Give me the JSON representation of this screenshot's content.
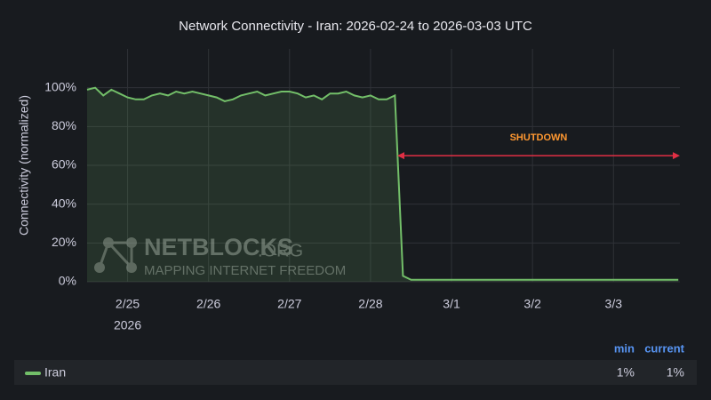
{
  "chart_data": {
    "type": "line",
    "title": "Network Connectivity - Iran: 2026-02-24 to 2026-03-03 UTC",
    "y_label": "Connectivity (normalized)",
    "xlim": [
      0.5,
      7.82
    ],
    "xticks": [
      {
        "value": 1,
        "label": "2/25",
        "sublabel": "2026"
      },
      {
        "value": 2,
        "label": "2/26"
      },
      {
        "value": 3,
        "label": "2/27"
      },
      {
        "value": 4,
        "label": "2/28"
      },
      {
        "value": 5,
        "label": "3/1"
      },
      {
        "value": 6,
        "label": "3/2"
      },
      {
        "value": 7,
        "label": "3/3"
      }
    ],
    "ylim": [
      0,
      120
    ],
    "yticks": [
      {
        "value": 0,
        "label": "0%"
      },
      {
        "value": 20,
        "label": "20%"
      },
      {
        "value": 40,
        "label": "40%"
      },
      {
        "value": 60,
        "label": "60%"
      },
      {
        "value": 80,
        "label": "80%"
      },
      {
        "value": 100,
        "label": "100%"
      }
    ],
    "grid": true,
    "x": [
      0.5,
      0.6,
      0.7,
      0.8,
      0.9,
      1.0,
      1.1,
      1.2,
      1.3,
      1.4,
      1.5,
      1.6,
      1.7,
      1.8,
      1.9,
      2.0,
      2.1,
      2.2,
      2.3,
      2.4,
      2.5,
      2.6,
      2.7,
      2.8,
      2.9,
      3.0,
      3.1,
      3.2,
      3.3,
      3.4,
      3.5,
      3.6,
      3.7,
      3.8,
      3.9,
      4.0,
      4.1,
      4.2,
      4.3,
      4.4,
      4.5,
      4.6,
      4.7,
      4.8,
      4.9,
      5.0,
      5.1,
      5.2,
      5.3,
      5.4,
      5.5,
      5.6,
      5.7,
      5.8,
      5.9,
      6.0,
      6.1,
      6.2,
      6.3,
      6.4,
      6.5,
      6.6,
      6.7,
      6.8,
      6.9,
      7.0,
      7.1,
      7.2,
      7.3,
      7.4,
      7.5,
      7.6,
      7.7,
      7.8
    ],
    "series": [
      {
        "name": "Iran",
        "color": "#73bf69",
        "values": [
          99,
          100,
          96,
          99,
          97,
          95,
          94,
          94,
          96,
          97,
          96,
          98,
          97,
          98,
          97,
          96,
          95,
          93,
          94,
          96,
          97,
          98,
          96,
          97,
          98,
          98,
          97,
          95,
          96,
          94,
          97,
          97,
          98,
          96,
          95,
          96,
          94,
          94,
          96,
          3,
          1,
          1,
          1,
          1,
          1,
          1,
          1,
          1,
          1,
          1,
          1,
          1,
          1,
          1,
          1,
          1,
          1,
          1,
          1,
          1,
          1,
          1,
          1,
          1,
          1,
          1,
          1,
          1,
          1,
          1,
          1,
          1,
          1,
          1
        ]
      }
    ],
    "annotation": {
      "text": "SHUTDOWN",
      "x_start": 4.33,
      "x_end": 7.82,
      "y": 65,
      "color": "#e02f44",
      "text_color": "#ff9830"
    },
    "watermark": {
      "name": "NETBLOCKS",
      "suffix": ".ORG",
      "tagline": "MAPPING INTERNET FREEDOM"
    },
    "legend_stats": [
      {
        "name": "min",
        "value": {
          "value": 1,
          "label": "1%"
        }
      },
      {
        "name": "current",
        "value": {
          "value": 1,
          "label": "1%"
        }
      }
    ]
  }
}
